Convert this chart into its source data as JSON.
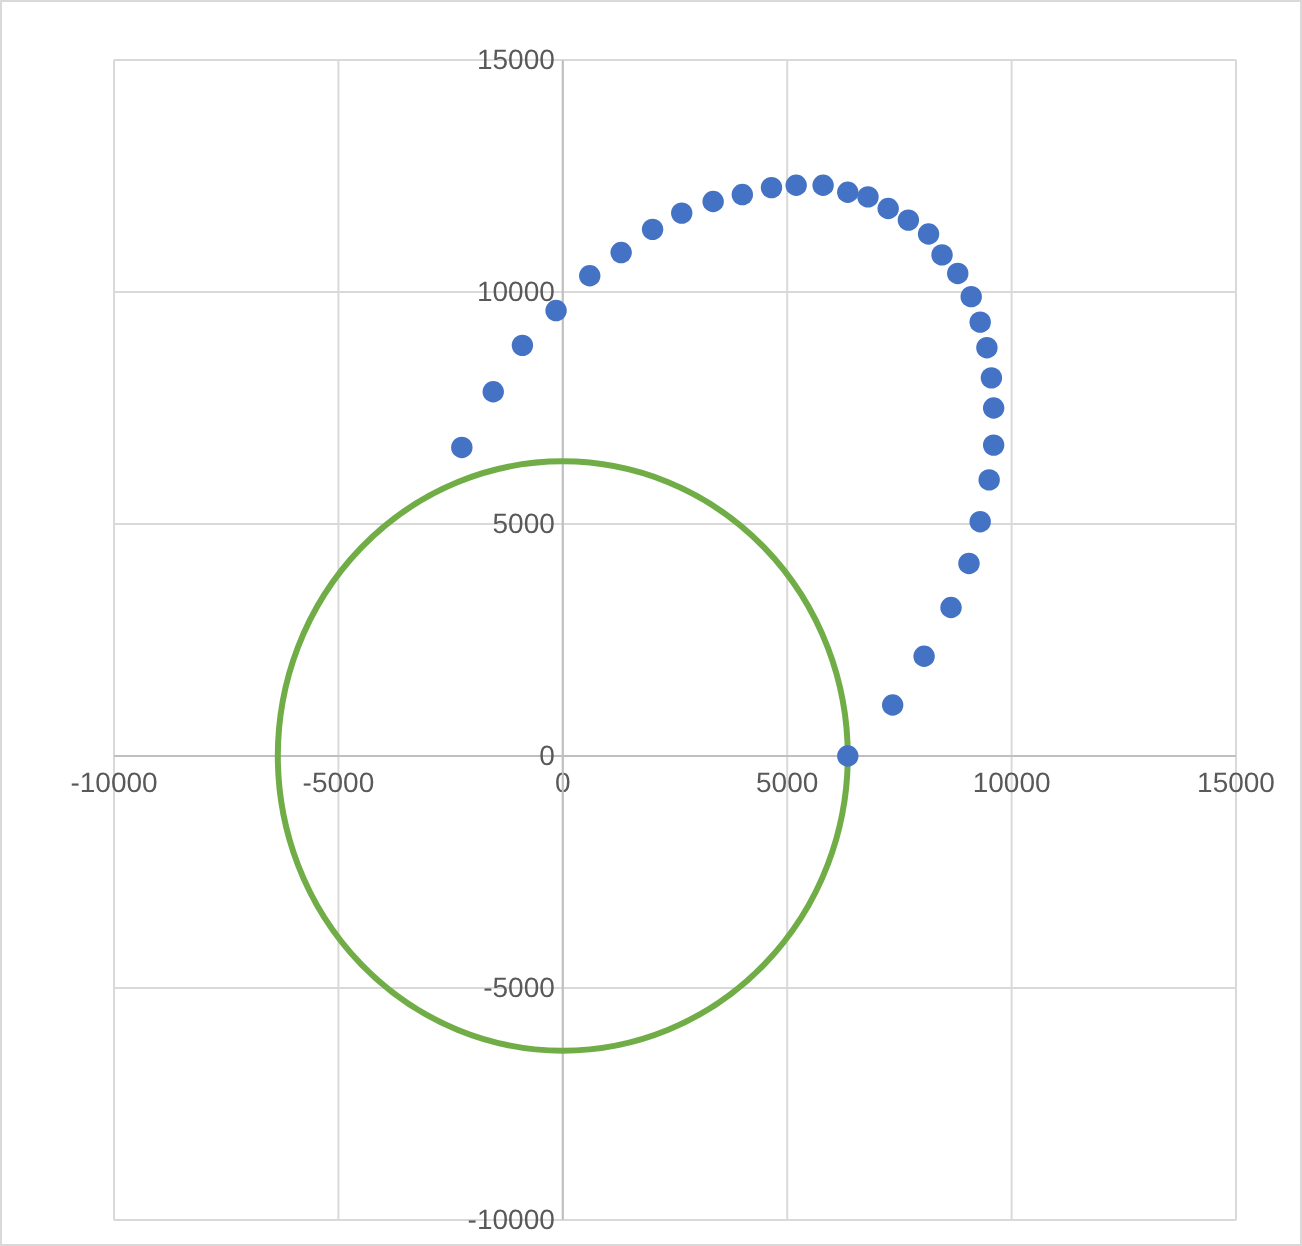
{
  "chart_data": {
    "type": "scatter",
    "xlim": [
      -10000,
      15000
    ],
    "xticks": [
      -10000,
      -5000,
      0,
      5000,
      10000,
      15000
    ],
    "ylim": [
      -10000,
      15000
    ],
    "yticks": [
      -10000,
      -5000,
      0,
      5000,
      10000,
      15000
    ],
    "grid": true,
    "marker": "circle",
    "series": [
      {
        "color": "#4472c4",
        "x": [
          -2250,
          -1550,
          -900,
          -150,
          600,
          1300,
          2000,
          2650,
          3350,
          4000,
          4650,
          5200,
          5800,
          6350,
          6800,
          7250,
          7700,
          8150,
          8450,
          8800,
          9100,
          9300,
          9450,
          9550,
          9600,
          9600,
          9500,
          9300,
          9050,
          8650,
          8050,
          7350,
          6350
        ],
        "values": [
          6650,
          7850,
          8850,
          9600,
          10350,
          10850,
          11350,
          11700,
          11950,
          12100,
          12250,
          12300,
          12300,
          12150,
          12050,
          11800,
          11550,
          11250,
          10800,
          10400,
          9900,
          9350,
          8800,
          8150,
          7500,
          6700,
          5950,
          5050,
          4150,
          3200,
          2150,
          1100,
          0
        ]
      }
    ]
  }
}
